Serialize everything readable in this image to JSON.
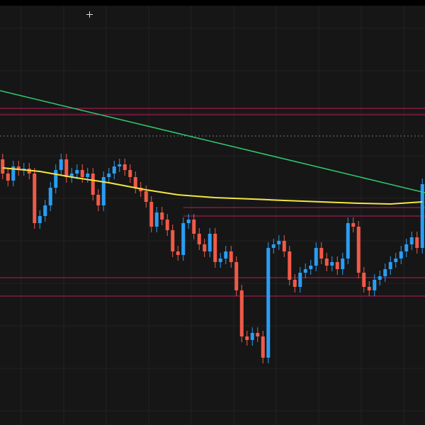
{
  "chart_data": {
    "type": "candlestick",
    "ylim": [
      0,
      600
    ],
    "up_color": "#2a9df4",
    "down_color": "#f05a48",
    "candles": {
      "open": [
        375,
        355,
        345,
        365,
        360,
        362,
        355,
        285,
        295,
        310,
        335,
        360,
        375,
        350,
        355,
        360,
        350,
        355,
        325,
        310,
        350,
        355,
        365,
        368,
        360,
        350,
        335,
        330,
        315,
        280,
        300,
        290,
        275,
        245,
        240,
        285,
        290,
        270,
        255,
        245,
        270,
        230,
        235,
        245,
        230,
        190,
        125,
        120,
        130,
        125,
        95,
        250,
        255,
        260,
        245,
        205,
        195,
        215,
        220,
        225,
        250,
        235,
        225,
        230,
        220,
        235,
        285,
        280,
        215,
        195,
        190,
        205,
        210,
        220,
        230,
        235,
        245,
        255,
        265,
        250
      ],
      "high": [
        383,
        363,
        373,
        373,
        370,
        370,
        363,
        303,
        318,
        343,
        368,
        383,
        383,
        363,
        368,
        368,
        363,
        363,
        333,
        358,
        363,
        373,
        376,
        376,
        368,
        358,
        343,
        338,
        323,
        308,
        308,
        298,
        283,
        253,
        293,
        298,
        298,
        278,
        263,
        278,
        278,
        243,
        253,
        253,
        238,
        198,
        133,
        138,
        138,
        133,
        258,
        263,
        268,
        268,
        253,
        213,
        223,
        228,
        233,
        258,
        258,
        243,
        238,
        238,
        243,
        293,
        293,
        288,
        223,
        203,
        213,
        218,
        228,
        238,
        243,
        253,
        263,
        273,
        273,
        348
      ],
      "low": [
        347,
        337,
        337,
        352,
        352,
        347,
        277,
        277,
        287,
        302,
        327,
        352,
        342,
        342,
        347,
        342,
        342,
        317,
        302,
        302,
        342,
        347,
        357,
        352,
        342,
        327,
        322,
        307,
        272,
        272,
        282,
        267,
        237,
        232,
        232,
        277,
        262,
        247,
        237,
        237,
        222,
        222,
        227,
        222,
        182,
        117,
        112,
        112,
        117,
        87,
        87,
        242,
        247,
        237,
        197,
        187,
        187,
        207,
        212,
        217,
        227,
        217,
        217,
        212,
        212,
        227,
        272,
        207,
        187,
        182,
        182,
        197,
        202,
        212,
        222,
        227,
        237,
        247,
        242,
        242
      ],
      "close": [
        355,
        345,
        365,
        360,
        362,
        355,
        285,
        295,
        310,
        335,
        360,
        375,
        350,
        355,
        360,
        350,
        355,
        325,
        310,
        350,
        355,
        365,
        368,
        360,
        350,
        335,
        330,
        315,
        280,
        300,
        290,
        275,
        245,
        240,
        285,
        290,
        270,
        255,
        245,
        270,
        230,
        235,
        245,
        230,
        190,
        125,
        120,
        130,
        125,
        95,
        250,
        255,
        260,
        245,
        205,
        195,
        215,
        220,
        225,
        250,
        235,
        225,
        230,
        220,
        235,
        285,
        280,
        215,
        195,
        190,
        205,
        210,
        220,
        230,
        235,
        245,
        255,
        265,
        250,
        340
      ]
    },
    "moving_average": {
      "color": "#f4e542",
      "x": [
        0,
        7,
        13,
        20,
        27,
        33,
        40,
        47,
        53,
        60,
        67,
        73,
        79
      ],
      "values": [
        363,
        358,
        350,
        342,
        332,
        325,
        321,
        319,
        317,
        315,
        313,
        312,
        315
      ]
    },
    "trend_line": {
      "color": "#2ecc71",
      "x": [
        -0.5,
        79.5
      ],
      "values": [
        472,
        328
      ]
    },
    "levels": [
      {
        "value": 447,
        "color": "#c2185b",
        "start": 0
      },
      {
        "value": 438,
        "color": "#c2185b",
        "start": 0
      },
      {
        "value": 408,
        "color": "#777777",
        "start": 0,
        "dashed": true
      },
      {
        "value": 307,
        "color": "#c2185b",
        "start": 34
      },
      {
        "value": 295,
        "color": "#c2185b",
        "start": 34
      },
      {
        "value": 208,
        "color": "#c2185b",
        "start": 0
      },
      {
        "value": 182,
        "color": "#c2185b",
        "start": 0
      }
    ]
  }
}
